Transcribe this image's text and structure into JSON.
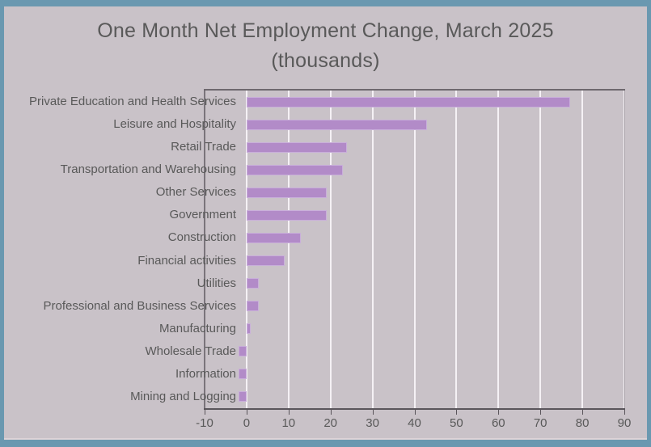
{
  "window": {
    "frame_color": "#6a98b0",
    "background_color": "#c9c2c8",
    "text_color": "#595959"
  },
  "chart_data": {
    "type": "bar",
    "orientation": "horizontal",
    "title": "One Month Net Employment Change, March 2025",
    "subtitle": "(thousands)",
    "categories": [
      "Private Education and Health Services",
      "Leisure and Hospitality",
      "Retail Trade",
      "Transportation and Warehousing",
      "Other Services",
      "Government",
      "Construction",
      "Financial activities",
      "Utilities",
      "Professional and Business Services",
      "Manufacturing",
      "Wholesale Trade",
      "Information",
      "Mining and Logging"
    ],
    "values": [
      77,
      43,
      24,
      23,
      19,
      19,
      13,
      9,
      3,
      3,
      1,
      -2,
      -2,
      -2
    ],
    "xlabel": "",
    "ylabel": "",
    "xlim": [
      -10,
      90
    ],
    "x_ticks": [
      -10,
      0,
      10,
      20,
      30,
      40,
      50,
      60,
      70,
      80,
      90
    ],
    "grid": true,
    "legend": "none",
    "bar_color": "#b28bc8",
    "gridline_color": "#f5f1f5"
  }
}
